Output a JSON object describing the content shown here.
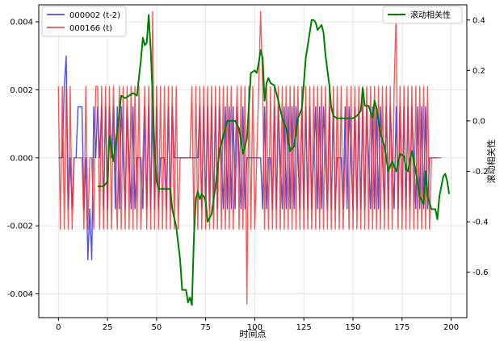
{
  "chart_data": {
    "type": "line",
    "xlabel": "时间点",
    "ylabel_left": "",
    "ylabel_right": "滚动相关性",
    "xlim": [
      -10,
      208
    ],
    "ylim_left": [
      -0.0047,
      0.0045
    ],
    "ylim_right": [
      -0.78,
      0.46
    ],
    "xticks": [
      0,
      25,
      50,
      75,
      100,
      125,
      150,
      175,
      200
    ],
    "yticks_left": [
      -0.004,
      -0.002,
      0.0,
      0.002,
      0.004
    ],
    "yticks_left_labels": [
      "-0.004",
      "-0.002",
      "0.000",
      "0.002",
      "0.004"
    ],
    "yticks_right": [
      -0.6,
      -0.4,
      -0.2,
      0.0,
      0.2,
      0.4
    ],
    "yticks_right_labels": [
      "-0.6",
      "-0.4",
      "-0.2",
      "0.0",
      "0.2",
      "0.4"
    ],
    "grid": true,
    "legend_left": {
      "placement": "top-left",
      "entries": [
        "000002 (t-2)",
        "000166 (t)"
      ]
    },
    "legend_right": {
      "placement": "top-right",
      "entries": [
        "滚动相关性"
      ]
    },
    "colors": {
      "series1": "#3333dd",
      "series2": "#ee3333",
      "rolling": "#008000"
    },
    "series": [
      {
        "name": "000002 (t-2)",
        "axis": "left",
        "values": [
          0,
          0,
          0,
          0.0021,
          0.003,
          -0.0015,
          0,
          -0.0015,
          0,
          0,
          0.0015,
          0.0015,
          0.0015,
          -0.0015,
          0,
          -0.003,
          -0.0015,
          -0.003,
          0.0015,
          0,
          0.0015,
          0,
          0.0015,
          -0.0015,
          0.0015,
          -0.0015,
          0.0015,
          0,
          0.0015,
          -0.0015,
          0.0015,
          -0.0015,
          0.0015,
          0,
          -0.0015,
          0.0015,
          0,
          -0.0015,
          0.0015,
          -0.0015,
          0,
          0,
          0,
          -0.0015,
          0.0015,
          -0.0015,
          0.0015,
          -0.0015,
          0.0015,
          -0.0015,
          0.0015,
          -0.0015,
          0,
          0,
          0,
          -0.0015,
          0.0015,
          -0.0015,
          0.0015,
          0,
          0,
          0,
          0,
          0,
          0,
          0,
          0,
          0,
          0,
          0,
          0,
          0,
          0.0015,
          -0.0015,
          0.0015,
          -0.0015,
          0.0015,
          -0.0015,
          0.0015,
          -0.0015,
          0.0015,
          -0.0015,
          0.0015,
          0,
          -0.0015,
          0.0015,
          -0.0015,
          0.0015,
          -0.0015,
          0.0015,
          -0.0015,
          0.0015,
          0,
          -0.0015,
          0.0015,
          -0.0015,
          0,
          0,
          0,
          0,
          0,
          0,
          0,
          0,
          -0.0015,
          0.0015,
          -0.0015,
          0,
          0,
          -0.0015,
          0.0015,
          -0.0015,
          0.0015,
          0,
          -0.0015,
          0.0015,
          -0.0015,
          0.0015,
          -0.0015,
          0.0015,
          -0.0015,
          0.0015,
          0,
          -0.0015,
          0.0015,
          -0.0015,
          0.0015,
          -0.0015,
          0.0015,
          -0.0015,
          0,
          0.0015,
          -0.0015,
          0.0015,
          -0.0015,
          0.0015,
          0,
          -0.0015,
          0.0015,
          -0.0015,
          0.0015,
          -0.0015,
          0,
          0,
          0,
          -0.0015,
          0.0015,
          -0.0015,
          0.0015,
          0,
          -0.0015,
          0.0015,
          -0.0015,
          0.0015,
          -0.0015,
          0.0015,
          -0.0015,
          0.0015,
          0,
          -0.0015,
          0.0015,
          -0.0015,
          0.0015,
          -0.0015,
          0.0015,
          0,
          -0.0015,
          0.0015,
          -0.0015,
          0.0015,
          0,
          -0.0015,
          0.0015,
          -0.0015,
          0.0015,
          -0.0015,
          0.0015,
          -0.0015,
          0.0015,
          -0.0015,
          0.0015,
          0,
          -0.0015,
          0.0015,
          -0.0015,
          0.0015,
          -0.0015,
          0.0015,
          -0.0015,
          0,
          0,
          0,
          0,
          0
        ]
      },
      {
        "name": "000166 (t)",
        "axis": "left",
        "values": [
          0.0021,
          -0.0021,
          0.0021,
          -0.0021,
          0.0021,
          -0.0021,
          0.0021,
          -0.0021,
          0,
          0,
          0,
          0,
          0,
          -0.0021,
          0.0021,
          -0.0021,
          0,
          0,
          -0.0021,
          0.0021,
          0.0021,
          -0.0021,
          0.0021,
          -0.0021,
          0.0021,
          -0.0021,
          0.0021,
          -0.0021,
          0.0021,
          0,
          -0.0021,
          0.0021,
          -0.0021,
          0.0021,
          -0.0021,
          0.0021,
          -0.0021,
          0.0021,
          -0.0021,
          0.0021,
          -0.0021,
          0.0021,
          -0.0021,
          0,
          0.0021,
          -0.0021,
          0.0021,
          -0.0021,
          0.0043,
          -0.0021,
          0.0021,
          -0.0021,
          0.0021,
          -0.0021,
          0.0021,
          -0.0021,
          0.0021,
          -0.0021,
          0.0021,
          -0.0021,
          0.0021,
          -0.0021,
          0,
          0,
          0,
          0,
          0,
          0,
          0.0021,
          -0.0021,
          0.0021,
          -0.0021,
          0.0021,
          -0.0021,
          0.0021,
          -0.0021,
          0.0021,
          -0.0021,
          0.0021,
          -0.0021,
          0.0021,
          -0.0021,
          0.0021,
          -0.0021,
          0.0021,
          -0.0021,
          0.0021,
          -0.0021,
          0.0021,
          -0.0021,
          0,
          0.0021,
          -0.0021,
          0.0021,
          -0.0021,
          0.0021,
          -0.0043,
          0.0021,
          -0.0021,
          0.0021,
          -0.0021,
          0,
          0.0021,
          0.0043,
          0.0021,
          -0.0021,
          0.0021,
          -0.0021,
          0.0021,
          -0.0021,
          0.0021,
          -0.0021,
          0.0021,
          -0.0021,
          0.0021,
          -0.0021,
          0.0021,
          -0.0021,
          0.0021,
          -0.0021,
          0.0021,
          -0.0021,
          0.0021,
          -0.0021,
          0.0021,
          -0.0021,
          0.0021,
          -0.0021,
          0.0021,
          -0.0021,
          0.0021,
          -0.0021,
          0.0021,
          -0.0021,
          0.0021,
          -0.0021,
          0.0021,
          -0.0021,
          0.0021,
          -0.0021,
          0.0021,
          -0.0021,
          0.0021,
          -0.0021,
          0.0021,
          -0.0021,
          0,
          0.0021,
          -0.0021,
          0.0021,
          -0.0021,
          0.0021,
          -0.0021,
          0.0021,
          -0.0021,
          0.0021,
          -0.0021,
          0.0021,
          -0.0021,
          0.0021,
          -0.0021,
          0.0021,
          -0.0021,
          0.0021,
          -0.0021,
          0.0021,
          -0.0021,
          0.0021,
          -0.0021,
          0.0021,
          -0.0021,
          0.0021,
          0.0043,
          -0.0021,
          0.0021,
          -0.0021,
          0.0021,
          -0.0021,
          0.0021,
          -0.0021,
          0.0021,
          -0.0021,
          0.0021,
          -0.0021,
          0.0021,
          -0.0021,
          0.0021,
          -0.0021,
          0.0021,
          -0.0021,
          0,
          0,
          0,
          0,
          0,
          0
        ]
      },
      {
        "name": "滚动相关性",
        "axis": "right",
        "points": [
          [
            20,
            -0.26
          ],
          [
            23,
            -0.26
          ],
          [
            25,
            -0.24
          ],
          [
            26,
            -0.06
          ],
          [
            28,
            -0.16
          ],
          [
            30,
            -0.04
          ],
          [
            32,
            0.1
          ],
          [
            34,
            0.09
          ],
          [
            36,
            0.1
          ],
          [
            38,
            0.11
          ],
          [
            40,
            0.1
          ],
          [
            42,
            0.24
          ],
          [
            43,
            0.33
          ],
          [
            44,
            0.3
          ],
          [
            45,
            0.31
          ],
          [
            46,
            0.42
          ],
          [
            47,
            0.28
          ],
          [
            48,
            0.1
          ],
          [
            49,
            -0.12
          ],
          [
            50,
            -0.24
          ],
          [
            51,
            -0.27
          ],
          [
            53,
            -0.27
          ],
          [
            55,
            -0.27
          ],
          [
            57,
            -0.27
          ],
          [
            58,
            -0.35
          ],
          [
            60,
            -0.42
          ],
          [
            62,
            -0.55
          ],
          [
            63,
            -0.67
          ],
          [
            65,
            -0.67
          ],
          [
            66,
            -0.72
          ],
          [
            67,
            -0.7
          ],
          [
            68,
            -0.73
          ],
          [
            69,
            -0.46
          ],
          [
            70,
            -0.31
          ],
          [
            71,
            -0.28
          ],
          [
            72,
            -0.31
          ],
          [
            73,
            -0.29
          ],
          [
            74,
            -0.3
          ],
          [
            75,
            -0.32
          ],
          [
            76,
            -0.4
          ],
          [
            78,
            -0.37
          ],
          [
            80,
            -0.26
          ],
          [
            82,
            -0.12
          ],
          [
            84,
            -0.06
          ],
          [
            86,
            0
          ],
          [
            88,
            0
          ],
          [
            90,
            0
          ],
          [
            92,
            -0.03
          ],
          [
            94,
            -0.13
          ],
          [
            96,
            -0.07
          ],
          [
            98,
            0.19
          ],
          [
            100,
            0.2
          ],
          [
            101,
            0.19
          ],
          [
            102,
            0.23
          ],
          [
            103,
            0.28
          ],
          [
            104,
            0.25
          ],
          [
            105,
            0.08
          ],
          [
            106,
            0.15
          ],
          [
            107,
            0.17
          ],
          [
            108,
            0.15
          ],
          [
            110,
            0.14
          ],
          [
            112,
            0.08
          ],
          [
            114,
            0.01
          ],
          [
            116,
            -0.03
          ],
          [
            118,
            -0.12
          ],
          [
            120,
            -0.1
          ],
          [
            122,
            0.01
          ],
          [
            124,
            0.05
          ],
          [
            126,
            0.25
          ],
          [
            128,
            0.35
          ],
          [
            129,
            0.4
          ],
          [
            130,
            0.4
          ],
          [
            131,
            0.39
          ],
          [
            132,
            0.36
          ],
          [
            133,
            0.37
          ],
          [
            134,
            0.38
          ],
          [
            135,
            0.35
          ],
          [
            136,
            0.26
          ],
          [
            138,
            0.14
          ],
          [
            139,
            0.05
          ],
          [
            140,
            0.02
          ],
          [
            142,
            0.01
          ],
          [
            144,
            0.01
          ],
          [
            146,
            0.01
          ],
          [
            148,
            0.01
          ],
          [
            150,
            0.01
          ],
          [
            152,
            0.02
          ],
          [
            154,
            0.04
          ],
          [
            155,
            0.13
          ],
          [
            156,
            0.06
          ],
          [
            158,
            0.06
          ],
          [
            160,
            0.01
          ],
          [
            161,
            0.08
          ],
          [
            162,
            0.05
          ],
          [
            164,
            -0.05
          ],
          [
            166,
            -0.1
          ],
          [
            168,
            -0.2
          ],
          [
            170,
            -0.16
          ],
          [
            172,
            -0.2
          ],
          [
            174,
            -0.13
          ],
          [
            176,
            -0.14
          ],
          [
            177,
            -0.19
          ],
          [
            178,
            -0.2
          ],
          [
            180,
            -0.12
          ],
          [
            182,
            -0.2
          ],
          [
            184,
            -0.3
          ],
          [
            186,
            -0.33
          ],
          [
            187,
            -0.2
          ],
          [
            188,
            -0.3
          ],
          [
            190,
            -0.35
          ],
          [
            192,
            -0.35
          ],
          [
            193,
            -0.39
          ],
          [
            194,
            -0.3
          ],
          [
            195,
            -0.26
          ],
          [
            196,
            -0.22
          ],
          [
            197,
            -0.21
          ],
          [
            198,
            -0.24
          ],
          [
            199,
            -0.29
          ]
        ]
      }
    ]
  }
}
